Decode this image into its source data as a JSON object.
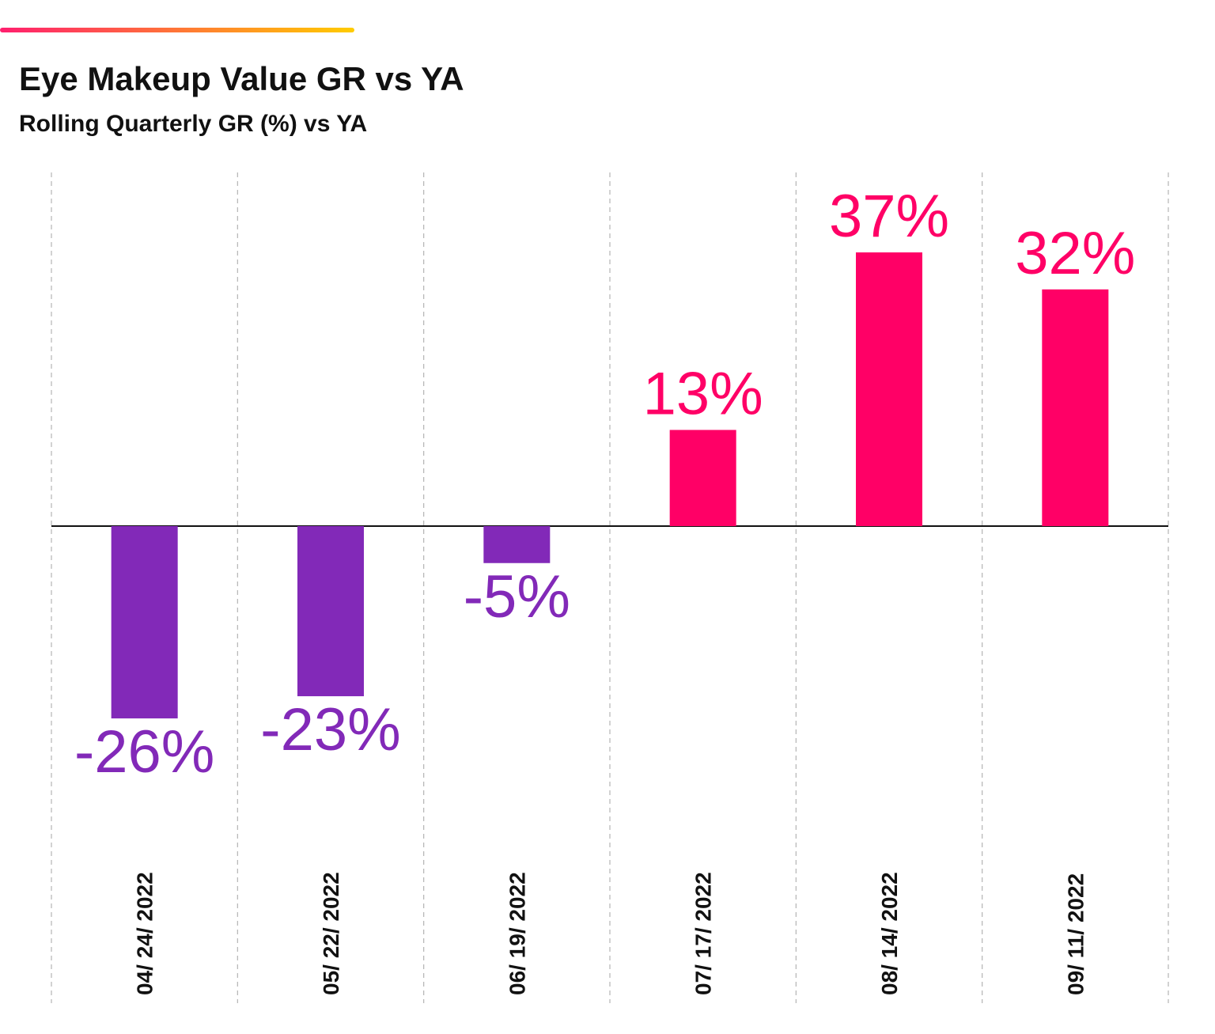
{
  "header": {
    "title": "Eye Makeup Value GR vs YA",
    "subtitle": "Rolling Quarterly GR (%) vs YA"
  },
  "colors": {
    "positive": "#ff0066",
    "negative": "#8229b8",
    "accent_gradient": [
      "#ff1f6e",
      "#ffcc00"
    ],
    "gridline": "#b4b4b4",
    "baseline": "#111111",
    "tick_text": "#111111"
  },
  "chart_data": {
    "type": "bar",
    "title": "Eye Makeup Value GR vs YA",
    "subtitle": "Rolling Quarterly GR (%) vs YA",
    "categories": [
      "04/ 24/ 2022",
      "05/ 22/ 2022",
      "06/ 19/ 2022",
      "07/ 17/ 2022",
      "08/ 14/ 2022",
      "09/ 11/ 2022"
    ],
    "values": [
      -26,
      -23,
      -5,
      13,
      37,
      32
    ],
    "data_labels": [
      "-26%",
      "-23%",
      "-5%",
      "13%",
      "37%",
      "32%"
    ],
    "unit": "%",
    "xlabel": "",
    "ylabel": "",
    "ylim": [
      -26,
      37
    ],
    "grid": "vertical dashed separators",
    "legend": "none",
    "tick_label_orientation": "vertical"
  }
}
